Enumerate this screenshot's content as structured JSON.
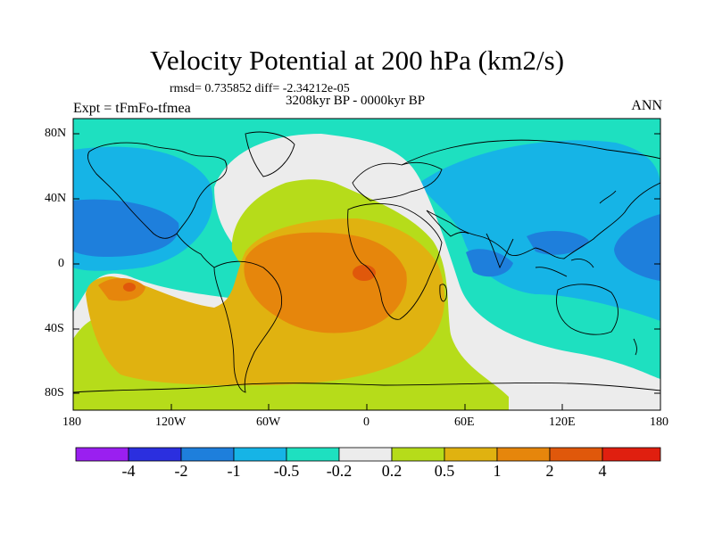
{
  "title": "Velocity Potential at 200 hPa (km2/s)",
  "stats_line": "rmsd= 0.735852 diff= -2.34212e-05",
  "period_line": "3208kyr BP - 0000kyr BP",
  "experiment_label": "Expt = tFmFo-tfmea",
  "season_label": "ANN",
  "lat_ticks": [
    "80N",
    "40N",
    "0",
    "40S",
    "80S"
  ],
  "lon_ticks": [
    "180",
    "120W",
    "60W",
    "0",
    "60E",
    "120E",
    "180"
  ],
  "colorbar": {
    "colors": [
      "#9a1ff0",
      "#2b2fdf",
      "#1e7fdc",
      "#16b4e6",
      "#1ee0c0",
      "#ececec",
      "#b6dc1a",
      "#e0b210",
      "#e6860c",
      "#e0580b",
      "#e01f0f"
    ],
    "labels": [
      "-4",
      "-2",
      "-1",
      "-0.5",
      "-0.2",
      "0.2",
      "0.5",
      "1",
      "2",
      "4"
    ]
  }
}
